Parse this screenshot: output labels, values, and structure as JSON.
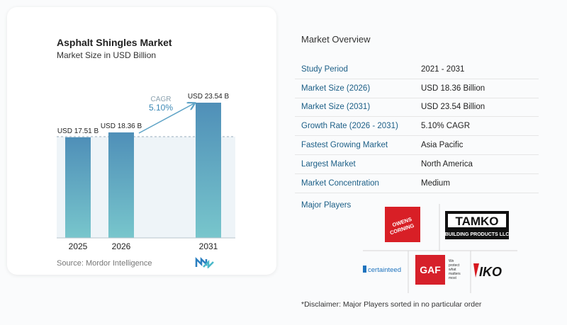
{
  "chart": {
    "title": "Asphalt Shingles Market",
    "subtitle": "Market Size in USD Billion",
    "source": "Source:  Mordor Intelligence",
    "cagr_label": "CAGR",
    "cagr_value": "5.10%"
  },
  "chart_data": {
    "type": "bar",
    "title": "Asphalt Shingles Market",
    "subtitle": "Market Size in USD Billion",
    "categories": [
      "2025",
      "2026",
      "2031"
    ],
    "values": [
      17.51,
      18.36,
      23.54
    ],
    "data_labels": [
      "USD 17.51 B",
      "USD 18.36 B",
      "USD 23.54 B"
    ],
    "ylim": [
      0,
      23.54
    ],
    "annotation": "CAGR 5.10%",
    "colors": [
      "#4f8fb8",
      "#78c6cc"
    ]
  },
  "overview": {
    "title": "Market Overview",
    "rows": [
      {
        "label": "Study Period",
        "value": "2021 - 2031"
      },
      {
        "label": "Market Size (2026)",
        "value": "USD 18.36 Billion"
      },
      {
        "label": "Market Size (2031)",
        "value": "USD 23.54 Billion"
      },
      {
        "label": "Growth Rate (2026 - 2031)",
        "value": "5.10% CAGR"
      },
      {
        "label": "Fastest Growing Market",
        "value": "Asia Pacific"
      },
      {
        "label": "Largest Market",
        "value": "North America"
      },
      {
        "label": "Market Concentration",
        "value": "Medium"
      }
    ]
  },
  "players": {
    "label": "Major Players",
    "logos": {
      "owens_corning": [
        "OWENS",
        "CORNING"
      ],
      "tamko": [
        "TAMKO",
        "BUILDING PRODUCTS LLC"
      ],
      "certainteed": "certainteed",
      "gaf": "GAF",
      "gaf_tagline": [
        "We",
        "protect",
        "what",
        "matters",
        "most"
      ],
      "iko": "IKO"
    }
  },
  "disclaimer": "*Disclaimer: Major Players sorted in no particular order"
}
